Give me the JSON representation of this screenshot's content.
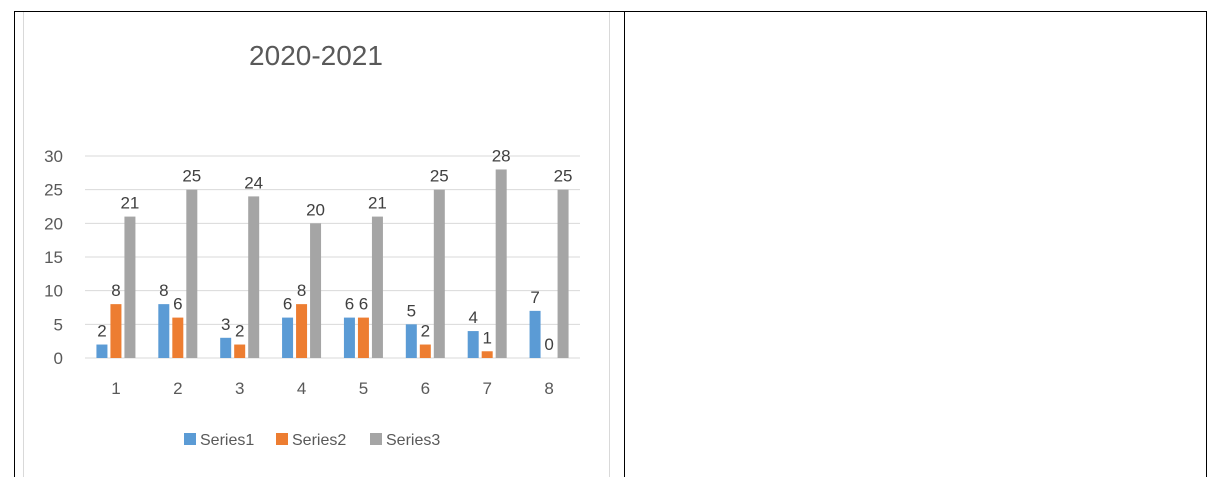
{
  "document": {
    "table": {
      "left_cell": "chart",
      "right_cell": ""
    }
  },
  "chart_data": {
    "type": "bar",
    "title": "2020-2021",
    "categories": [
      "1",
      "2",
      "3",
      "4",
      "5",
      "6",
      "7",
      "8"
    ],
    "series": [
      {
        "name": "Series1",
        "color": "#5b9bd5",
        "values": [
          2,
          8,
          3,
          6,
          6,
          5,
          4,
          7
        ]
      },
      {
        "name": "Series2",
        "color": "#ed7d31",
        "values": [
          8,
          6,
          2,
          8,
          6,
          2,
          1,
          0
        ]
      },
      {
        "name": "Series3",
        "color": "#a5a5a5",
        "values": [
          21,
          25,
          24,
          20,
          21,
          25,
          28,
          25
        ]
      }
    ],
    "ylim": [
      0,
      30
    ],
    "yticks": [
      0,
      5,
      10,
      15,
      20,
      25,
      30
    ],
    "grid": true,
    "data_labels": true,
    "legend_position": "bottom",
    "gridline_color": "#d9d9d9",
    "text_color": "#595959"
  }
}
